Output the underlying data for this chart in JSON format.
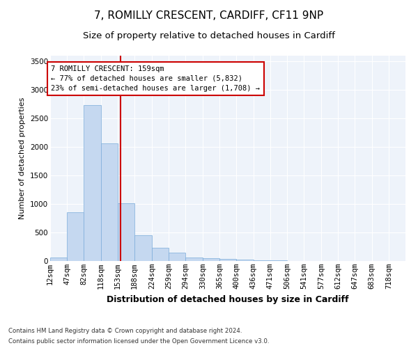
{
  "title": "7, ROMILLY CRESCENT, CARDIFF, CF11 9NP",
  "subtitle": "Size of property relative to detached houses in Cardiff",
  "xlabel": "Distribution of detached houses by size in Cardiff",
  "ylabel": "Number of detached properties",
  "footnote1": "Contains HM Land Registry data © Crown copyright and database right 2024.",
  "footnote2": "Contains public sector information licensed under the Open Government Licence v3.0.",
  "annotation_title": "7 ROMILLY CRESCENT: 159sqm",
  "annotation_line1": "← 77% of detached houses are smaller (5,832)",
  "annotation_line2": "23% of semi-detached houses are larger (1,708) →",
  "property_line_x": 159,
  "categories": [
    "12sqm",
    "47sqm",
    "82sqm",
    "118sqm",
    "153sqm",
    "188sqm",
    "224sqm",
    "259sqm",
    "294sqm",
    "330sqm",
    "365sqm",
    "400sqm",
    "436sqm",
    "471sqm",
    "506sqm",
    "541sqm",
    "577sqm",
    "612sqm",
    "647sqm",
    "683sqm",
    "718sqm"
  ],
  "bin_edges": [
    12,
    47,
    82,
    118,
    153,
    188,
    224,
    259,
    294,
    330,
    365,
    400,
    436,
    471,
    506,
    541,
    577,
    612,
    647,
    683,
    718,
    753
  ],
  "values": [
    60,
    850,
    2730,
    2060,
    1010,
    455,
    230,
    145,
    60,
    50,
    35,
    25,
    15,
    8,
    5,
    3,
    2,
    2,
    1,
    1,
    1
  ],
  "bar_color": "#c5d8f0",
  "bar_edge_color": "#7aabda",
  "line_color": "#cc0000",
  "bg_color": "#eef3fa",
  "grid_color": "#ffffff",
  "ylim": [
    0,
    3600
  ],
  "yticks": [
    0,
    500,
    1000,
    1500,
    2000,
    2500,
    3000,
    3500
  ],
  "title_fontsize": 11,
  "subtitle_fontsize": 9.5,
  "xlabel_fontsize": 9,
  "ylabel_fontsize": 8,
  "tick_fontsize": 7.5
}
